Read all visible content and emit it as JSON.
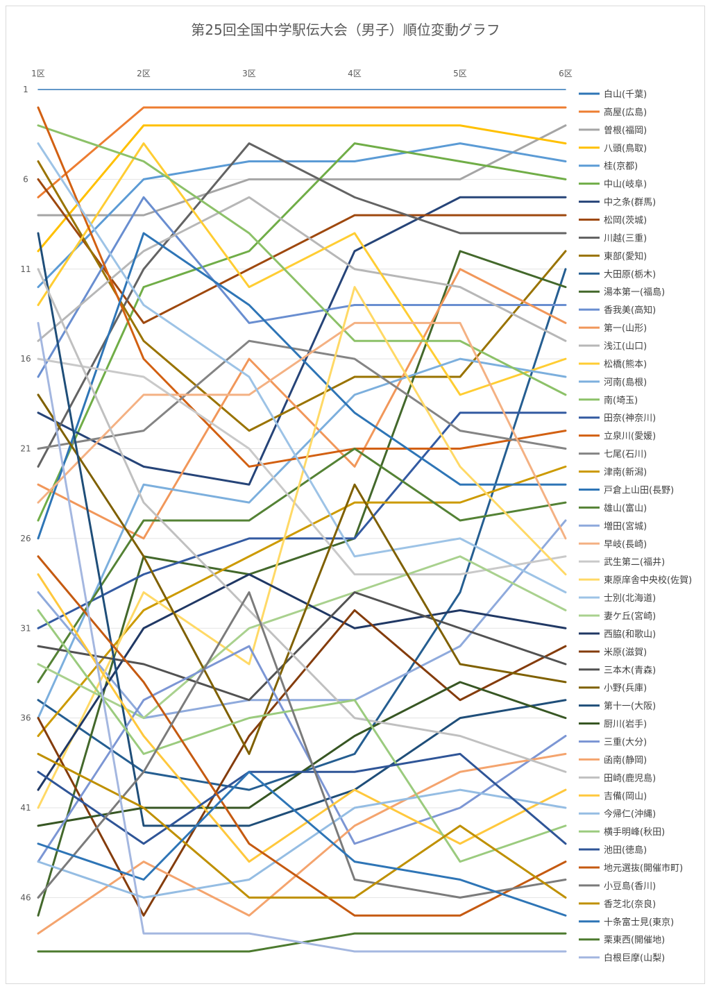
{
  "chart_data": {
    "type": "line",
    "title": "第25回全国中学駅伝大会（男子）順位変動グラフ",
    "categories": [
      "1区",
      "2区",
      "3区",
      "4区",
      "5区",
      "6区"
    ],
    "y_ticks": [
      "1",
      "6",
      "11",
      "16",
      "21",
      "26",
      "31",
      "36",
      "41",
      "46"
    ],
    "ylim": [
      1,
      49
    ],
    "y_reversed": true,
    "grid": true,
    "legend_position": "right",
    "series": [
      {
        "name": "白山(千葉)",
        "color": "#2e75b6",
        "values": [
          1,
          1,
          1,
          1,
          1,
          1
        ]
      },
      {
        "name": "高屋(広島)",
        "color": "#ed7d31",
        "values": [
          7,
          2,
          2,
          2,
          2,
          2
        ]
      },
      {
        "name": "曽根(福岡)",
        "color": "#a5a5a5",
        "values": [
          8,
          8,
          6,
          6,
          6,
          3
        ]
      },
      {
        "name": "八頭(鳥取)",
        "color": "#ffc000",
        "values": [
          10,
          3,
          3,
          3,
          3,
          4
        ]
      },
      {
        "name": "桂(京都)",
        "color": "#5b9bd5",
        "values": [
          12,
          6,
          5,
          5,
          4,
          5
        ]
      },
      {
        "name": "中山(岐阜)",
        "color": "#70ad47",
        "values": [
          25,
          12,
          10,
          4,
          5,
          6
        ]
      },
      {
        "name": "中之条(群馬)",
        "color": "#264478",
        "values": [
          19,
          22,
          23,
          10,
          7,
          7
        ]
      },
      {
        "name": "松岡(茨城)",
        "color": "#9e480e",
        "values": [
          6,
          14,
          11,
          8,
          8,
          8
        ]
      },
      {
        "name": "川越(三重)",
        "color": "#636363",
        "values": [
          22,
          11,
          4,
          7,
          9,
          9
        ]
      },
      {
        "name": "東部(愛知)",
        "color": "#997300",
        "values": [
          5,
          15,
          20,
          17,
          17,
          10
        ]
      },
      {
        "name": "大田原(栃木)",
        "color": "#255e91",
        "values": [
          35,
          39,
          40,
          38,
          29,
          11
        ]
      },
      {
        "name": "湯本第一(福島)",
        "color": "#43682b",
        "values": [
          47,
          27,
          28,
          26,
          10,
          12
        ]
      },
      {
        "name": "香我美(高知)",
        "color": "#698ed0",
        "values": [
          17,
          7,
          14,
          13,
          13,
          13
        ]
      },
      {
        "name": "第一(山形)",
        "color": "#f1975a",
        "values": [
          23,
          26,
          16,
          22,
          11,
          14
        ]
      },
      {
        "name": "浅江(山口)",
        "color": "#b7b7b7",
        "values": [
          15,
          10,
          7,
          11,
          12,
          15
        ]
      },
      {
        "name": "松橋(熊本)",
        "color": "#ffcd33",
        "values": [
          13,
          4,
          12,
          9,
          18,
          16
        ]
      },
      {
        "name": "河南(島根)",
        "color": "#7cafdd",
        "values": [
          36,
          23,
          24,
          18,
          16,
          17
        ]
      },
      {
        "name": "南(埼玉)",
        "color": "#8cc168",
        "values": [
          3,
          5,
          9,
          15,
          15,
          18
        ]
      },
      {
        "name": "田奈(神奈川)",
        "color": "#335aa1",
        "values": [
          31,
          28,
          26,
          26,
          19,
          19
        ]
      },
      {
        "name": "立泉川(愛媛)",
        "color": "#d26012",
        "values": [
          2,
          16,
          22,
          21,
          21,
          20
        ]
      },
      {
        "name": "七尾(石川)",
        "color": "#848484",
        "values": [
          21,
          20,
          15,
          16,
          20,
          21
        ]
      },
      {
        "name": "津南(新潟)",
        "color": "#cc9a00",
        "values": [
          37,
          30,
          27,
          24,
          24,
          22
        ]
      },
      {
        "name": "戸倉上山田(長野)",
        "color": "#2e75b6",
        "values": [
          26,
          9,
          13,
          19,
          23,
          23
        ]
      },
      {
        "name": "雄山(富山)",
        "color": "#548235",
        "values": [
          34,
          25,
          25,
          21,
          25,
          24
        ]
      },
      {
        "name": "増田(宮城)",
        "color": "#8faadc",
        "values": [
          29,
          36,
          35,
          35,
          32,
          25
        ]
      },
      {
        "name": "早岐(長崎)",
        "color": "#f4b183",
        "values": [
          24,
          18,
          18,
          14,
          14,
          26
        ]
      },
      {
        "name": "武生第二(福井)",
        "color": "#c9c9c9",
        "values": [
          16,
          17,
          21,
          28,
          28,
          27
        ]
      },
      {
        "name": "東原庠舎中央校(佐賀)",
        "color": "#ffd966",
        "values": [
          41,
          29,
          33,
          12,
          22,
          28
        ]
      },
      {
        "name": "士別(北海道)",
        "color": "#9dc3e6",
        "values": [
          4,
          13,
          17,
          27,
          26,
          29
        ]
      },
      {
        "name": "妻ケ丘(宮崎)",
        "color": "#a9d18e",
        "values": [
          33,
          36,
          31,
          29,
          27,
          30
        ]
      },
      {
        "name": "西脇(和歌山)",
        "color": "#203864",
        "values": [
          40,
          31,
          28,
          31,
          30,
          31
        ]
      },
      {
        "name": "米原(滋賀)",
        "color": "#843c0c",
        "values": [
          36,
          47,
          37,
          30,
          35,
          32
        ]
      },
      {
        "name": "三本木(青森)",
        "color": "#525252",
        "values": [
          32,
          33,
          35,
          29,
          31,
          33
        ]
      },
      {
        "name": "小野(兵庫)",
        "color": "#7f6000",
        "values": [
          18,
          27,
          38,
          23,
          33,
          34
        ]
      },
      {
        "name": "第十一(大阪)",
        "color": "#1f4e79",
        "values": [
          9,
          42,
          42,
          40,
          36,
          35
        ]
      },
      {
        "name": "厨川(岩手)",
        "color": "#375623",
        "values": [
          42,
          41,
          41,
          37,
          34,
          36
        ]
      },
      {
        "name": "三重(大分)",
        "color": "#7c96d4",
        "values": [
          44,
          35,
          32,
          43,
          41,
          37
        ]
      },
      {
        "name": "函南(静岡)",
        "color": "#f4a46e",
        "values": [
          48,
          44,
          47,
          42,
          39,
          38
        ]
      },
      {
        "name": "田崎(鹿児島)",
        "color": "#c0c0c0",
        "values": [
          11,
          24,
          30,
          36,
          37,
          39
        ]
      },
      {
        "name": "吉備(岡山)",
        "color": "#ffc83d",
        "values": [
          28,
          37,
          44,
          40,
          43,
          40
        ]
      },
      {
        "name": "今帰仁(沖縄)",
        "color": "#95bde3",
        "values": [
          44,
          46,
          45,
          41,
          40,
          41
        ]
      },
      {
        "name": "横手明峰(秋田)",
        "color": "#9bcb7e",
        "values": [
          30,
          38,
          36,
          35,
          44,
          42
        ]
      },
      {
        "name": "池田(徳島)",
        "color": "#2f5597",
        "values": [
          39,
          43,
          39,
          39,
          38,
          43
        ]
      },
      {
        "name": "地元選抜(開催市町)",
        "color": "#c55a11",
        "values": [
          27,
          34,
          43,
          47,
          47,
          44
        ]
      },
      {
        "name": "小豆島(香川)",
        "color": "#7b7b7b",
        "values": [
          46,
          39,
          29,
          45,
          46,
          45
        ]
      },
      {
        "name": "香芝北(奈良)",
        "color": "#bf9000",
        "values": [
          38,
          41,
          46,
          46,
          42,
          46
        ]
      },
      {
        "name": "十条富士見(東京)",
        "color": "#2e75b6",
        "values": [
          43,
          45,
          39,
          44,
          45,
          47
        ]
      },
      {
        "name": "栗東西(開催地)",
        "color": "#4c7a2e",
        "values": [
          49,
          49,
          49,
          48,
          48,
          48
        ]
      },
      {
        "name": "白根巨摩(山梨)",
        "color": "#a4b7e0",
        "values": [
          14,
          48,
          48,
          49,
          49,
          49
        ]
      }
    ]
  }
}
